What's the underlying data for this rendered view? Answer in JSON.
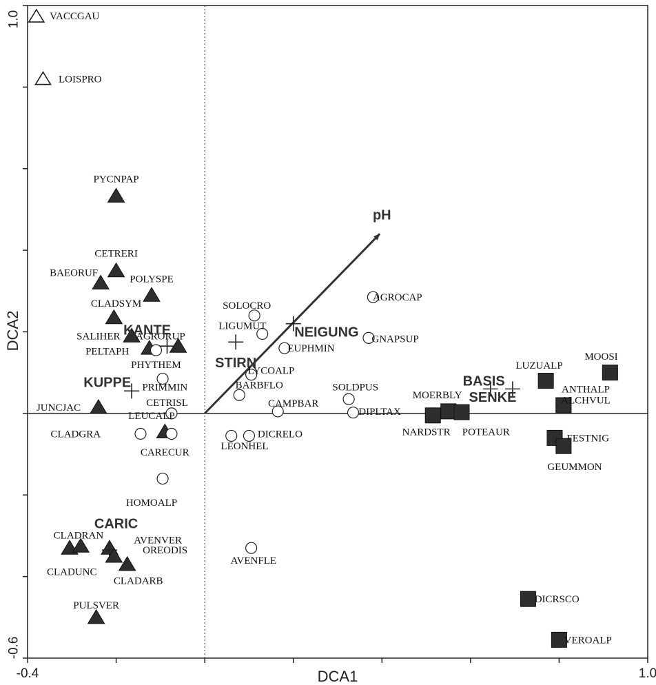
{
  "chart_data": {
    "type": "scatter",
    "xlabel": "DCA1",
    "ylabel": "DCA2",
    "xlim": [
      -0.4,
      1.0
    ],
    "ylim": [
      -0.6,
      1.0
    ],
    "x_tick_labels": [
      {
        "value": -0.4,
        "label": "-0.4"
      },
      {
        "value": 1.0,
        "label": "1.0"
      }
    ],
    "y_tick_labels": [
      {
        "value": -0.6,
        "label": "-0.6"
      },
      {
        "value": 1.0,
        "label": "1.0"
      }
    ],
    "x_ticks": [
      -0.4,
      -0.2,
      0.0,
      0.2,
      0.4,
      0.6,
      0.8,
      1.0
    ],
    "y_ticks": [
      -0.6,
      -0.4,
      -0.2,
      0.0,
      0.2,
      0.4,
      0.6,
      0.8,
      1.0
    ],
    "reference_lines": {
      "x": 0.0,
      "y": 0.0,
      "vertical_style": "dotted",
      "horizontal_style": "solid"
    },
    "groups": [
      {
        "marker": "triangle-open",
        "points": [
          {
            "label": "VACCGAU",
            "x": -0.38,
            "y": 0.973,
            "lx": -0.35,
            "ly": 0.975,
            "anchor": "start"
          },
          {
            "label": "LOISPRO",
            "x": -0.365,
            "y": 0.82,
            "lx": -0.33,
            "ly": 0.82,
            "anchor": "start"
          }
        ]
      },
      {
        "marker": "triangle-filled",
        "points": [
          {
            "label": "PYCNPAP",
            "x": -0.2,
            "y": 0.533,
            "lx": -0.2,
            "ly": 0.575,
            "anchor": "middle"
          },
          {
            "label": "CETRERI",
            "x": -0.2,
            "y": 0.35,
            "lx": -0.2,
            "ly": 0.393,
            "anchor": "middle"
          },
          {
            "label": "BAEORUF",
            "x": -0.235,
            "y": 0.32,
            "lx": -0.35,
            "ly": 0.345,
            "anchor": "start"
          },
          {
            "label": "POLYSPE",
            "x": -0.12,
            "y": 0.29,
            "lx": -0.12,
            "ly": 0.33,
            "anchor": "middle"
          },
          {
            "label": "CLADSYM",
            "x": -0.205,
            "y": 0.235,
            "lx": -0.2,
            "ly": 0.27,
            "anchor": "middle"
          },
          {
            "label": "SALIHER",
            "x": -0.165,
            "y": 0.19,
            "lx": -0.24,
            "ly": 0.19,
            "anchor": "middle"
          },
          {
            "label": "AGRORUP",
            "x": -0.06,
            "y": 0.165,
            "lx": -0.1,
            "ly": 0.19,
            "anchor": "middle"
          },
          {
            "label": "PELTAPH",
            "x": -0.125,
            "y": 0.16,
            "lx": -0.22,
            "ly": 0.153,
            "anchor": "middle"
          },
          {
            "label": "JUNCJAC",
            "x": -0.24,
            "y": 0.015,
            "lx": -0.28,
            "ly": 0.015,
            "anchor": "end"
          },
          {
            "label": "CARECUR",
            "x": -0.09,
            "y": -0.045,
            "lx": -0.09,
            "ly": -0.095,
            "anchor": "middle"
          },
          {
            "label": "CLADRAN",
            "x": -0.305,
            "y": -0.33,
            "lx": -0.285,
            "ly": -0.298,
            "anchor": "middle"
          },
          {
            "label": "AVENVER",
            "x": -0.215,
            "y": -0.33,
            "lx": -0.16,
            "ly": -0.31,
            "anchor": "start"
          },
          {
            "label": "CLADUNC",
            "x": -0.28,
            "y": -0.325,
            "lx": -0.3,
            "ly": -0.388,
            "anchor": "middle"
          },
          {
            "label": "OREODIS",
            "x": -0.205,
            "y": -0.35,
            "lx": -0.14,
            "ly": -0.335,
            "anchor": "start"
          },
          {
            "label": "CLADARB",
            "x": -0.175,
            "y": -0.37,
            "lx": -0.15,
            "ly": -0.41,
            "anchor": "middle"
          },
          {
            "label": "PULSVER",
            "x": -0.245,
            "y": -0.5,
            "lx": -0.245,
            "ly": -0.47,
            "anchor": "middle"
          }
        ]
      },
      {
        "marker": "circle-open",
        "points": [
          {
            "label": "PHYTHEM",
            "x": -0.11,
            "y": 0.155,
            "lx": -0.11,
            "ly": 0.12,
            "anchor": "middle"
          },
          {
            "label": "PRIMMIN",
            "x": -0.095,
            "y": 0.085,
            "lx": -0.09,
            "ly": 0.065,
            "anchor": "middle"
          },
          {
            "label": "CETRISL",
            "x": -0.075,
            "y": 0.0,
            "lx": -0.085,
            "ly": 0.027,
            "anchor": "middle"
          },
          {
            "label": "LEUCALP",
            "x": -0.075,
            "y": -0.05,
            "lx": -0.12,
            "ly": -0.005,
            "anchor": "middle"
          },
          {
            "label": "CLADGRA",
            "x": -0.145,
            "y": -0.05,
            "lx": -0.235,
            "ly": -0.05,
            "anchor": "end"
          },
          {
            "label": "HOMOALP",
            "x": -0.095,
            "y": -0.16,
            "lx": -0.12,
            "ly": -0.218,
            "anchor": "middle"
          },
          {
            "label": "SOLOCRO",
            "x": 0.112,
            "y": 0.24,
            "lx": 0.095,
            "ly": 0.265,
            "anchor": "middle"
          },
          {
            "label": "LIGUMUT",
            "x": 0.13,
            "y": 0.195,
            "lx": 0.085,
            "ly": 0.215,
            "anchor": "middle"
          },
          {
            "label": "EUPHMIN",
            "x": 0.18,
            "y": 0.16,
            "lx": 0.24,
            "ly": 0.16,
            "anchor": "middle"
          },
          {
            "label": "LYCOALP",
            "x": 0.105,
            "y": 0.095,
            "lx": 0.15,
            "ly": 0.105,
            "anchor": "middle"
          },
          {
            "label": "BARBFLO",
            "x": 0.078,
            "y": 0.045,
            "lx": 0.123,
            "ly": 0.07,
            "anchor": "middle"
          },
          {
            "label": "CAMPBAR",
            "x": 0.165,
            "y": 0.005,
            "lx": 0.2,
            "ly": 0.025,
            "anchor": "middle"
          },
          {
            "label": "DICRELO",
            "x": 0.1,
            "y": -0.055,
            "lx": 0.17,
            "ly": -0.05,
            "anchor": "middle"
          },
          {
            "label": "LEONHEL",
            "x": 0.06,
            "y": -0.055,
            "lx": 0.09,
            "ly": -0.08,
            "anchor": "middle"
          },
          {
            "label": "AVENFLE",
            "x": 0.105,
            "y": -0.33,
            "lx": 0.11,
            "ly": -0.36,
            "anchor": "middle"
          },
          {
            "label": "AGROCAP",
            "x": 0.38,
            "y": 0.285,
            "lx": 0.435,
            "ly": 0.285,
            "anchor": "middle"
          },
          {
            "label": "GNAPSUP",
            "x": 0.37,
            "y": 0.185,
            "lx": 0.43,
            "ly": 0.183,
            "anchor": "middle"
          },
          {
            "label": "SOLDPUS",
            "x": 0.325,
            "y": 0.035,
            "lx": 0.34,
            "ly": 0.065,
            "anchor": "middle"
          },
          {
            "label": "DIPLTAX",
            "x": 0.335,
            "y": 0.002,
            "lx": 0.395,
            "ly": 0.005,
            "anchor": "middle"
          }
        ]
      },
      {
        "marker": "square-filled",
        "points": [
          {
            "label": "MOERBLY",
            "x": 0.55,
            "y": 0.005,
            "lx": 0.525,
            "ly": 0.045,
            "anchor": "middle"
          },
          {
            "label": "NARDSTR",
            "x": 0.515,
            "y": -0.005,
            "lx": 0.5,
            "ly": -0.045,
            "anchor": "middle"
          },
          {
            "label": "POTEAUR",
            "x": 0.58,
            "y": 0.003,
            "lx": 0.635,
            "ly": -0.045,
            "anchor": "middle"
          },
          {
            "label": "LUZUALP",
            "x": 0.77,
            "y": 0.08,
            "lx": 0.755,
            "ly": 0.118,
            "anchor": "middle"
          },
          {
            "label": "MOOSI",
            "x": 0.915,
            "y": 0.1,
            "lx": 0.895,
            "ly": 0.14,
            "anchor": "middle"
          },
          {
            "label": "ANTHALP",
            "x": 0.81,
            "y": 0.02,
            "lx": 0.86,
            "ly": 0.06,
            "anchor": "middle"
          },
          {
            "label": "ALCHVUL",
            "x": 0.81,
            "y": 0.02,
            "lx": 0.86,
            "ly": 0.033,
            "anchor": "middle"
          },
          {
            "label": "FESTNIG",
            "x": 0.79,
            "y": -0.06,
            "lx": 0.865,
            "ly": -0.06,
            "anchor": "middle"
          },
          {
            "label": "GEUMMON",
            "x": 0.81,
            "y": -0.08,
            "lx": 0.835,
            "ly": -0.13,
            "anchor": "middle"
          },
          {
            "label": "DICRSCO",
            "x": 0.73,
            "y": -0.455,
            "lx": 0.795,
            "ly": -0.455,
            "anchor": "middle"
          },
          {
            "label": "VEROALP",
            "x": 0.8,
            "y": -0.555,
            "lx": 0.865,
            "ly": -0.555,
            "anchor": "middle"
          }
        ]
      }
    ],
    "centroids": [
      {
        "label": "KANTE",
        "x": -0.085,
        "y": 0.165,
        "lx": -0.13,
        "ly": 0.205
      },
      {
        "label": "KUPPE",
        "x": -0.165,
        "y": 0.055,
        "lx": -0.22,
        "ly": 0.077
      },
      {
        "label": "STIRN",
        "x": 0.07,
        "y": 0.175,
        "lx": 0.07,
        "ly": 0.125
      },
      {
        "label": "NEIGUNG",
        "x": 0.2,
        "y": 0.22,
        "lx": 0.275,
        "ly": 0.2
      },
      {
        "label": "BASIS",
        "x": 0.645,
        "y": 0.06,
        "lx": 0.63,
        "ly": 0.08
      },
      {
        "label": "SENKE",
        "x": 0.695,
        "y": 0.06,
        "lx": 0.65,
        "ly": 0.04
      },
      {
        "label": "CARIC",
        "x": -0.215,
        "y": -0.335,
        "lx": -0.2,
        "ly": -0.27
      }
    ],
    "vectors": [
      {
        "label": "pH",
        "x0": 0.0,
        "y0": 0.0,
        "x1": 0.395,
        "y1": 0.44,
        "lx": 0.4,
        "ly": 0.475
      }
    ]
  }
}
